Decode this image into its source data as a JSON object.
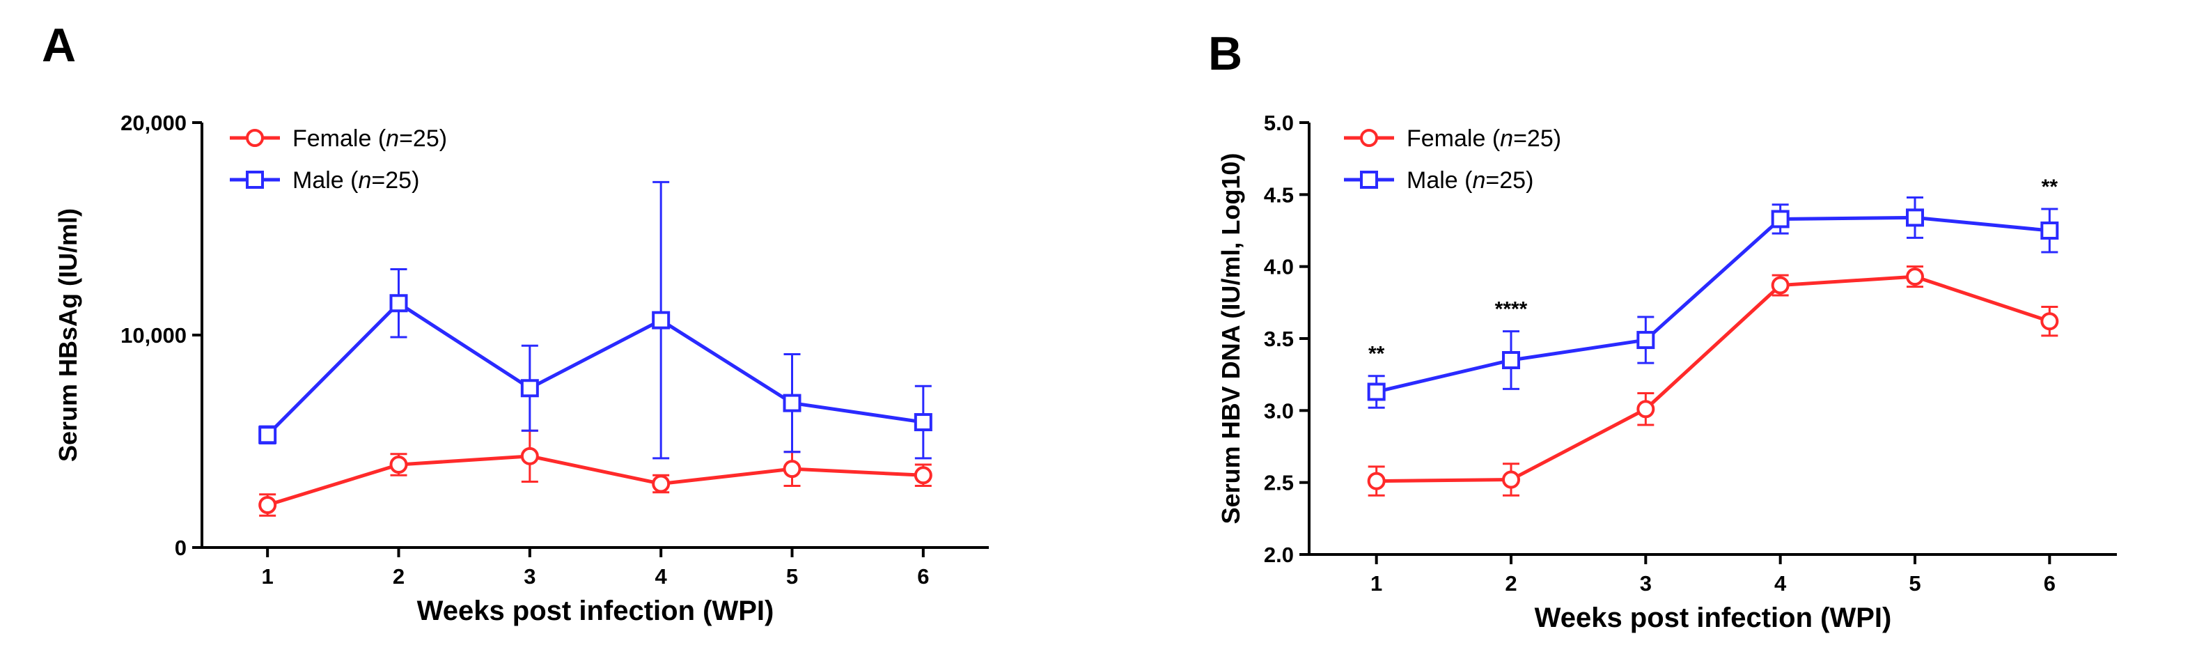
{
  "panels": {
    "A": {
      "letter": "A"
    },
    "B": {
      "letter": "B"
    }
  },
  "colors": {
    "female": "#ff2a2a",
    "male": "#2a2aff",
    "axis": "#000000"
  },
  "chart_data": [
    {
      "id": "A",
      "type": "line",
      "title": "",
      "xlabel": "Weeks post infection (WPI)",
      "ylabel": "Serum HBsAg (IU/ml)",
      "x": [
        1,
        2,
        3,
        4,
        5,
        6
      ],
      "xlim": [
        0.5,
        6.5
      ],
      "ylim": [
        0,
        20000
      ],
      "xticks": [
        "1",
        "2",
        "3",
        "4",
        "5",
        "6"
      ],
      "yticks": [
        {
          "value": 0,
          "label": "0"
        },
        {
          "value": 10000,
          "label": "10,000"
        },
        {
          "value": 20000,
          "label": "20,000"
        }
      ],
      "legend": {
        "placement": "top-left"
      },
      "series": [
        {
          "name": "Female",
          "n_label": "n",
          "n_value": "=25)",
          "prefix": "Female (",
          "marker": "circle",
          "color": "#ff2a2a",
          "values": [
            2000,
            3900,
            4300,
            3000,
            3700,
            3400
          ],
          "err": [
            500,
            500,
            1200,
            400,
            800,
            500
          ]
        },
        {
          "name": "Male",
          "n_label": "n",
          "n_value": "=25)",
          "prefix": "Male (",
          "marker": "square",
          "color": "#2a2aff",
          "values": [
            5300,
            11500,
            7500,
            10700,
            6800,
            5900
          ],
          "err": [
            400,
            1600,
            2000,
            6500,
            2300,
            1700
          ]
        }
      ],
      "annotations": []
    },
    {
      "id": "B",
      "type": "line",
      "title": "",
      "xlabel": "Weeks post infection (WPI)",
      "ylabel": "Serum HBV DNA (IU/ml, Log10)",
      "x": [
        1,
        2,
        3,
        4,
        5,
        6
      ],
      "xlim": [
        0.5,
        6.5
      ],
      "ylim": [
        2.0,
        5.0
      ],
      "xticks": [
        "1",
        "2",
        "3",
        "4",
        "5",
        "6"
      ],
      "yticks": [
        {
          "value": 2.0,
          "label": "2.0"
        },
        {
          "value": 2.5,
          "label": "2.5"
        },
        {
          "value": 3.0,
          "label": "3.0"
        },
        {
          "value": 3.5,
          "label": "3.5"
        },
        {
          "value": 4.0,
          "label": "4.0"
        },
        {
          "value": 4.5,
          "label": "4.5"
        },
        {
          "value": 5.0,
          "label": "5.0"
        }
      ],
      "legend": {
        "placement": "top-left"
      },
      "series": [
        {
          "name": "Female",
          "n_label": "n",
          "n_value": "=25)",
          "prefix": "Female (",
          "marker": "circle",
          "color": "#ff2a2a",
          "values": [
            2.51,
            2.52,
            3.01,
            3.87,
            3.93,
            3.62
          ],
          "err": [
            0.1,
            0.11,
            0.11,
            0.07,
            0.07,
            0.1
          ]
        },
        {
          "name": "Male",
          "n_label": "n",
          "n_value": "=25)",
          "prefix": "Male (",
          "marker": "square",
          "color": "#2a2aff",
          "values": [
            3.13,
            3.35,
            3.49,
            4.33,
            4.34,
            4.25
          ],
          "err": [
            0.11,
            0.2,
            0.16,
            0.1,
            0.14,
            0.15
          ]
        }
      ],
      "annotations": [
        {
          "x": 1,
          "text": "**"
        },
        {
          "x": 2,
          "text": "****"
        },
        {
          "x": 6,
          "text": "**"
        }
      ]
    }
  ]
}
